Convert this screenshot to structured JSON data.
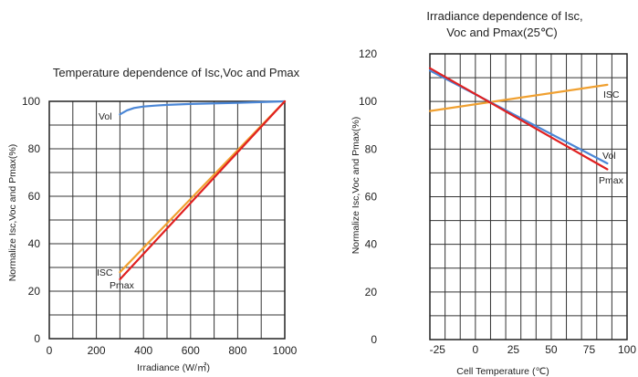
{
  "chart_data": [
    {
      "type": "line",
      "title": "Temperature dependence of Isc,Voc and Pmax",
      "xlabel": "Irradiance (W/㎡)",
      "ylabel": "Normalize Isc,Voc and Pmax(%)",
      "xlim": [
        0,
        1000
      ],
      "ylim": [
        0,
        100
      ],
      "xticks": [
        "0",
        "200",
        "400",
        "600",
        "800",
        "1000"
      ],
      "yticks": [
        "0",
        "20",
        "40",
        "60",
        "80",
        "100"
      ],
      "grid": true,
      "series": [
        {
          "name": "Vol",
          "color": "#4a86d6",
          "x": [
            300,
            330,
            360,
            400,
            450,
            500,
            600,
            800,
            1000
          ],
          "y": [
            94.5,
            96.2,
            97.2,
            97.8,
            98.2,
            98.5,
            98.9,
            99.4,
            100
          ]
        },
        {
          "name": "ISC",
          "color": "#f0a030",
          "x": [
            300,
            1000
          ],
          "y": [
            28,
            100
          ]
        },
        {
          "name": "Pmax",
          "color": "#e02020",
          "x": [
            300,
            1000
          ],
          "y": [
            25,
            100
          ]
        }
      ]
    },
    {
      "type": "line",
      "title": "Irradiance dependence of Isc,\nVoc and Pmax(25℃)",
      "xlabel": "Cell Temperature (℃)",
      "ylabel": "Normalize Isc,Voc and Pmax(%)",
      "xlim": [
        -30,
        100
      ],
      "ylim": [
        0,
        120
      ],
      "xticks": [
        "-25",
        "0",
        "25",
        "50",
        "75",
        "100"
      ],
      "yticks": [
        "0",
        "20",
        "40",
        "60",
        "80",
        "100",
        "120"
      ],
      "grid": true,
      "series": [
        {
          "name": "ISC",
          "color": "#f0a030",
          "x": [
            -30,
            87
          ],
          "y": [
            96,
            107
          ]
        },
        {
          "name": "Vol",
          "color": "#4a86d6",
          "x": [
            -30,
            87
          ],
          "y": [
            113,
            74
          ]
        },
        {
          "name": "Pmax",
          "color": "#e02020",
          "x": [
            -30,
            87
          ],
          "y": [
            114,
            71.5
          ]
        }
      ]
    }
  ]
}
